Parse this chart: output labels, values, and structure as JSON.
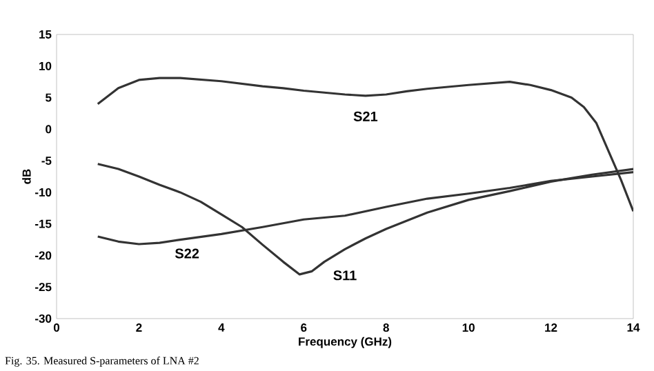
{
  "chart_data": {
    "type": "line",
    "xlabel": "Frequency (GHz)",
    "ylabel": "dB",
    "xlim": [
      0,
      14
    ],
    "ylim": [
      -30,
      15
    ],
    "xticks": [
      0,
      2,
      4,
      6,
      8,
      10,
      12,
      14
    ],
    "yticks": [
      -30,
      -25,
      -20,
      -15,
      -10,
      -5,
      0,
      5,
      10,
      15
    ],
    "grid": false,
    "legend": false,
    "marker": "none",
    "line_style": "solid",
    "series": [
      {
        "name": "S21",
        "color": "#333333",
        "x": [
          1,
          1.5,
          2,
          2.5,
          3,
          4,
          5,
          5.5,
          6,
          7,
          7.5,
          8,
          8.5,
          9,
          10,
          11,
          11.5,
          12,
          12.5,
          12.8,
          13.1,
          13.3,
          13.5,
          13.7,
          14
        ],
        "values": [
          4,
          6.5,
          7.8,
          8.1,
          8.1,
          7.6,
          6.8,
          6.5,
          6.1,
          5.5,
          5.3,
          5.5,
          6,
          6.4,
          7,
          7.5,
          7,
          6.2,
          5,
          3.5,
          1,
          -2,
          -5,
          -8,
          -13
        ]
      },
      {
        "name": "S11",
        "color": "#333333",
        "x": [
          1,
          1.5,
          2,
          2.5,
          3,
          3.5,
          4,
          4.5,
          5,
          5.5,
          5.9,
          6.2,
          6.5,
          7,
          7.5,
          8,
          9,
          10,
          11,
          12,
          13,
          14
        ],
        "values": [
          -5.5,
          -6.3,
          -7.5,
          -8.8,
          -10,
          -11.5,
          -13.5,
          -15.5,
          -18.3,
          -21,
          -23,
          -22.5,
          -21,
          -19,
          -17.3,
          -15.8,
          -13.2,
          -11.2,
          -9.8,
          -8.3,
          -7.2,
          -6.3
        ]
      },
      {
        "name": "S22",
        "color": "#333333",
        "x": [
          1,
          1.5,
          2,
          2.5,
          3,
          4,
          5,
          6,
          7,
          8,
          9,
          10,
          11,
          12,
          13,
          14
        ],
        "values": [
          -17,
          -17.8,
          -18.2,
          -18,
          -17.5,
          -16.6,
          -15.5,
          -14.3,
          -13.7,
          -12.3,
          -11,
          -10.2,
          -9.3,
          -8.2,
          -7.5,
          -6.8
        ]
      }
    ],
    "annotations": [
      "Fig. 35.   Measured S-parameters of LNA #2"
    ]
  }
}
